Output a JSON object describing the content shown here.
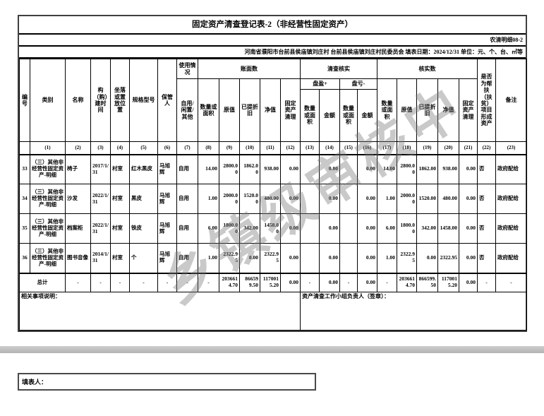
{
  "page": {
    "watermark": "乡镇级审核中",
    "filler_label": "填表人：",
    "colors": {
      "watermark_gray": "#787878",
      "divider_bar_gray": "#c0c0c0",
      "table_border": "#3f3f3f"
    }
  },
  "table": {
    "title": "固定资产清查登记表-2（非经营性固定资产）",
    "form_code": "农清明细08-2",
    "meta_line": "河南省濮阳市台前县侯庙镇刘庄村  台前县侯庙镇刘庄村民委员会  填表日期：2024/12/31  单位：元、个、台、㎡等",
    "header": {
      "no": "编号",
      "category": "类别",
      "name": "名称",
      "build_time": "构（购）建时间",
      "location": "坐落或置放位置",
      "spec": "规格型号",
      "keeper": "保管人",
      "usage": "使用情况",
      "usage_sub": "自用/闲置/其他",
      "book": "账面数",
      "check": "清查核实",
      "verified": "核实数",
      "surplus": "盘盈+",
      "deficit": "盘亏-",
      "qty": "数量或面积",
      "orig_value": "原值",
      "depreciation": "已提折旧",
      "net_value": "净值",
      "disposal": "固定资产清理",
      "amount": "金额",
      "poverty": "是否为帮扶（扶贫）项目形成资产",
      "remark": "备注"
    },
    "column_numbers": [
      "",
      "(1)",
      "(2)",
      "(3)",
      "(4)",
      "(5)",
      "(6)",
      "(7)",
      "(8)",
      "(9)",
      "(10)",
      "(11)",
      "(12)",
      "(13)",
      "(14)",
      "(15)",
      "(16)",
      "(17)",
      "(18)",
      "(19)",
      "(20)",
      "(21)",
      "(22)",
      "(23)"
    ],
    "rows": [
      [
        "33",
        "（三）其他非经营性固定资产-明细",
        "椅子",
        "2017/1/31",
        "村室",
        "红木黑皮",
        "马旭辉",
        "自用",
        "14.00",
        "2800.00",
        "1862.00",
        "938.00",
        "0.00",
        "",
        "0.00",
        "",
        "0.00",
        "14.00",
        "2800.00",
        "1862.00",
        "938.00",
        "0.00",
        "否",
        "政府配给"
      ],
      [
        "34",
        "（三）其他非经营性固定资产-明细",
        "沙发",
        "2022/1/31",
        "村室",
        "黑皮",
        "马旭辉",
        "自用",
        "1.00",
        "2000.00",
        "1520.00",
        "480.00",
        "0.00",
        "",
        "0.00",
        "",
        "0.00",
        "1.00",
        "2000.00",
        "1520.00",
        "480.00",
        "0.00",
        "否",
        "政府配给"
      ],
      [
        "35",
        "（三）其他非经营性固定资产-明细",
        "档案柜",
        "2022/1/31",
        "村室",
        "铁皮",
        "马旭辉",
        "自用",
        "6.00",
        "1800.00",
        "342.00",
        "1458.00",
        "0.00",
        "",
        "0.00",
        "",
        "0.00",
        "6.00",
        "1800.00",
        "342.00",
        "1458.00",
        "0.00",
        "否",
        "政府配给"
      ],
      [
        "36",
        "（三）其他非经营性固定资产-明细",
        "图书音像",
        "2014/1/31",
        "村室",
        "个",
        "马旭辉",
        "自用",
        "1.00",
        "2322.95",
        "0.00",
        "2322.95",
        "0.00",
        "",
        "0.00",
        "",
        "0.00",
        "1.00",
        "2322.95",
        "0.00",
        "2322.95",
        "0.00",
        "否",
        "政府配给"
      ]
    ],
    "total_row": {
      "label": "总计",
      "cells": [
        "-",
        "-",
        "-",
        "-",
        "-",
        "-",
        "-",
        "2036614.70",
        "866599.50",
        "1170015.20",
        "0.00",
        "-",
        "0.00",
        "-",
        "0.00",
        "-",
        "2036614.70",
        "866599.50",
        "1170015.20",
        "0.00",
        "-",
        "-"
      ]
    },
    "notes_label": "相关事项说明：",
    "sign_label": "资产清查工作小组负责人（签章）："
  }
}
